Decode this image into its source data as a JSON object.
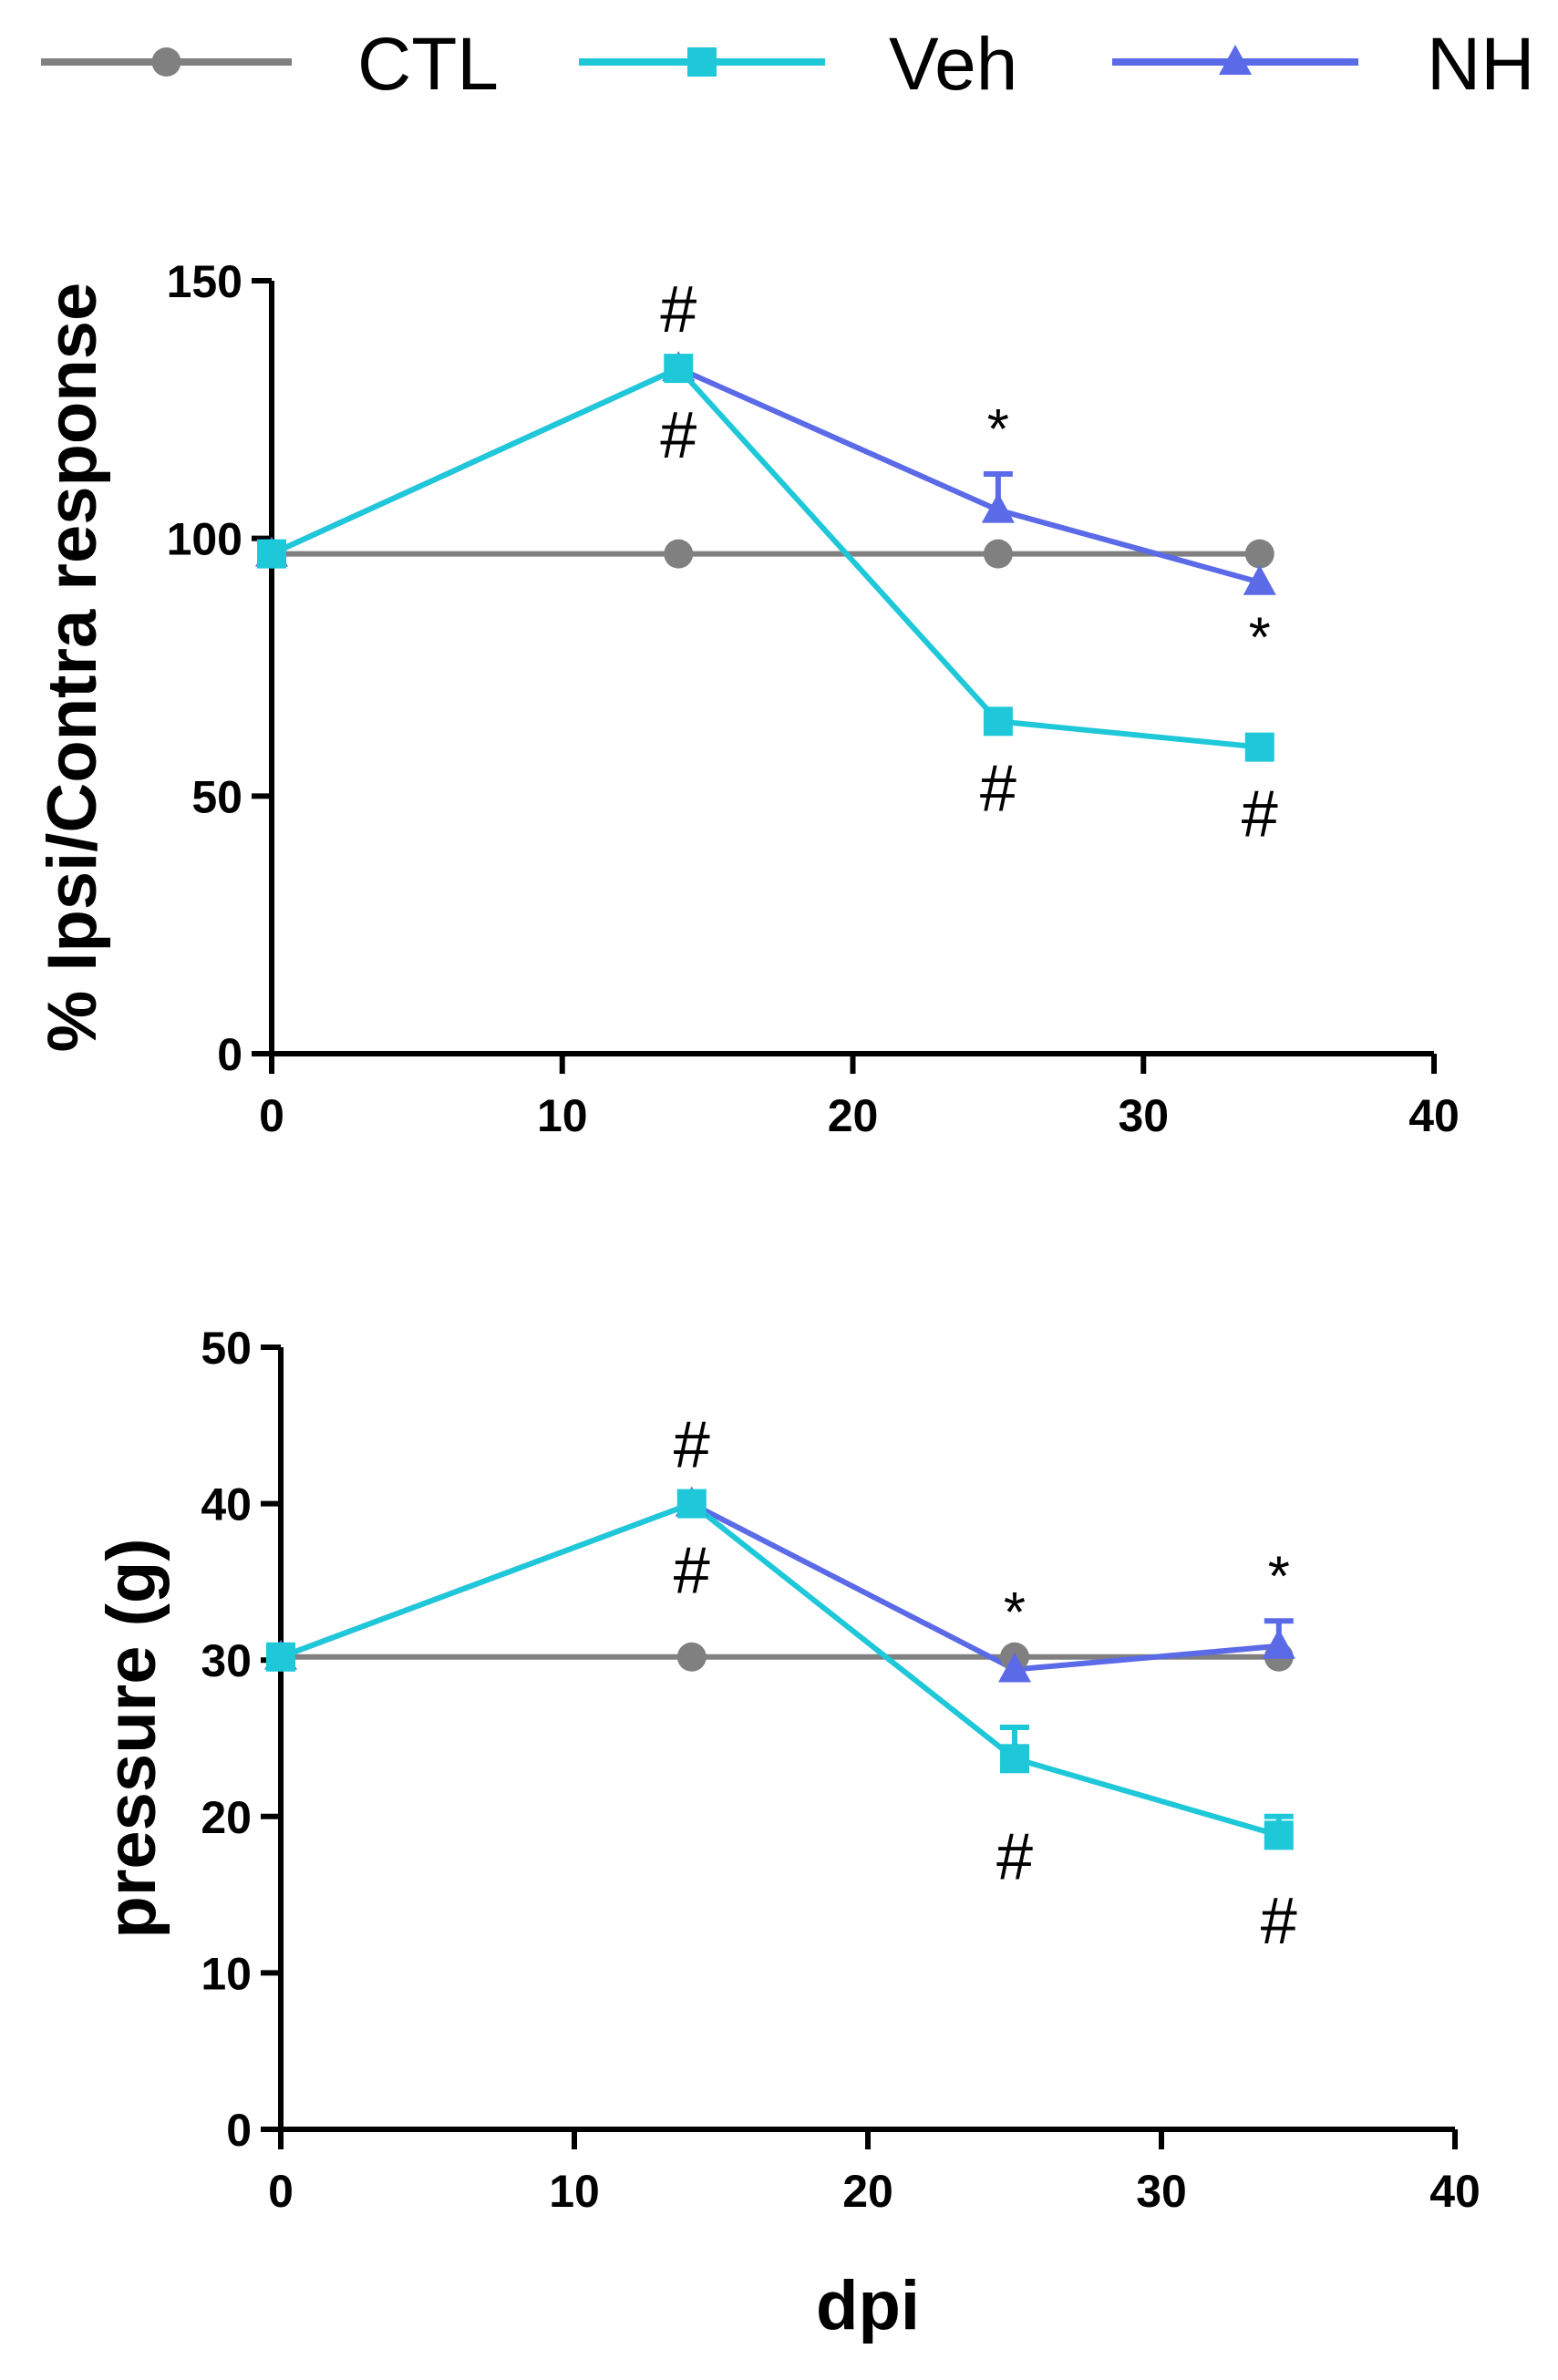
{
  "legend": [
    {
      "name": "CTL",
      "color": "#808080",
      "marker": "circle"
    },
    {
      "name": "Veh",
      "color": "#1ec8d8",
      "marker": "square"
    },
    {
      "name": "NH",
      "color": "#5b6ae6",
      "marker": "triangle"
    }
  ],
  "chart_data": [
    {
      "type": "line",
      "title": "",
      "xlabel": "",
      "ylabel": "% Ipsi/Contra response",
      "xlim": [
        0,
        40
      ],
      "ylim": [
        0,
        150
      ],
      "xticks": [
        "0",
        "10",
        "20",
        "30",
        "40"
      ],
      "yticks": [
        "0",
        "50",
        "100",
        "150"
      ],
      "series": [
        {
          "name": "CTL",
          "x": [
            0,
            14,
            25,
            34
          ],
          "y": [
            97,
            97,
            97,
            97
          ],
          "err": [
            0,
            0,
            0,
            0
          ]
        },
        {
          "name": "Veh",
          "x": [
            0,
            14,
            25,
            34
          ],
          "y": [
            97,
            133,
            64.5,
            59.5
          ],
          "err": [
            0,
            0,
            0,
            0
          ]
        },
        {
          "name": "NH",
          "x": [
            0,
            14,
            25,
            34
          ],
          "y": [
            97,
            133,
            105.5,
            91.5
          ],
          "err": [
            0,
            0,
            7,
            0
          ]
        }
      ],
      "annotations": [
        {
          "text": "#",
          "x": 14,
          "y": 133,
          "pos": "above"
        },
        {
          "text": "#",
          "x": 14,
          "y": 133,
          "pos": "below"
        },
        {
          "text": "*",
          "x": 25,
          "y": 112.5,
          "pos": "above"
        },
        {
          "text": "#",
          "x": 25,
          "y": 64.5,
          "pos": "below"
        },
        {
          "text": "*",
          "x": 34,
          "y": 91.5,
          "pos": "below"
        },
        {
          "text": "#",
          "x": 34,
          "y": 59.5,
          "pos": "below"
        }
      ]
    },
    {
      "type": "line",
      "title": "",
      "xlabel": "dpi",
      "ylabel": "pressure (g)",
      "xlim": [
        0,
        40
      ],
      "ylim": [
        0,
        50
      ],
      "xticks": [
        "0",
        "10",
        "20",
        "30",
        "40"
      ],
      "yticks": [
        "0",
        "10",
        "20",
        "30",
        "40",
        "50"
      ],
      "series": [
        {
          "name": "CTL",
          "x": [
            0,
            14,
            25,
            34
          ],
          "y": [
            30.2,
            30.2,
            30.2,
            30.2
          ],
          "err": [
            0,
            0,
            0,
            0
          ]
        },
        {
          "name": "Veh",
          "x": [
            0,
            14,
            25,
            34
          ],
          "y": [
            30.2,
            40,
            23.7,
            18.8
          ],
          "err": [
            0,
            0,
            2,
            1.2
          ]
        },
        {
          "name": "NH",
          "x": [
            0,
            14,
            25,
            34
          ],
          "y": [
            30.2,
            40,
            29.4,
            30.9
          ],
          "err": [
            0,
            0,
            0,
            1.6
          ]
        }
      ],
      "annotations": [
        {
          "text": "#",
          "x": 14,
          "y": 40,
          "pos": "above"
        },
        {
          "text": "#",
          "x": 14,
          "y": 40,
          "pos": "below"
        },
        {
          "text": "*",
          "x": 25,
          "y": 30.2,
          "pos": "above"
        },
        {
          "text": "#",
          "x": 25,
          "y": 21.7,
          "pos": "below"
        },
        {
          "text": "*",
          "x": 34,
          "y": 32.5,
          "pos": "above"
        },
        {
          "text": "#",
          "x": 34,
          "y": 17.6,
          "pos": "below"
        }
      ]
    }
  ]
}
